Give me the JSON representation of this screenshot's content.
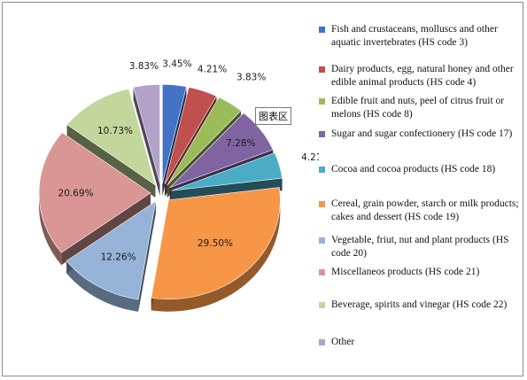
{
  "chart_data": {
    "type": "pie",
    "title": "",
    "series": [
      {
        "label": "Fish and crustaceans, molluscs and other aquatic invertebrates (HS code 3)",
        "value": 3.45,
        "display": "3.45%",
        "color": "#4472c4"
      },
      {
        "label": "Dairy products, egg, natural honey and other edible animal products (HS code 4)",
        "value": 4.21,
        "display": "4.21%",
        "color": "#c0504d"
      },
      {
        "label": "Edible fruit and nuts, peel of citrus fruit or melons (HS code 8)",
        "value": 3.83,
        "display": "3.83%",
        "color": "#9bbb59"
      },
      {
        "label": "Sugar and sugar confectionery (HS code 17)",
        "value": 7.28,
        "display": "7.28%",
        "color": "#8064a2"
      },
      {
        "label": "Cocoa and cocoa products (HS code 18)",
        "value": 4.21,
        "display": "4.21%",
        "color": "#4bacc6"
      },
      {
        "label": "Cereal, grain powder, starch or milk products; cakes and dessert (HS code 19)",
        "value": 29.5,
        "display": "29.50%",
        "color": "#f79646"
      },
      {
        "label": "Vegetable, friut, nut and plant products (HS code 20)",
        "value": 12.26,
        "display": "12.26%",
        "color": "#95b3d7"
      },
      {
        "label": "Miscellaneos products (HS code 21)",
        "value": 20.69,
        "display": "20.69%",
        "color": "#d99694"
      },
      {
        "label": "Beverage, spirits and vinegar (HS code 22)",
        "value": 10.73,
        "display": "10.73%",
        "color": "#c3d69b"
      },
      {
        "label": "Other",
        "value": 3.83,
        "display": "3.83%",
        "color": "#b3a2c7"
      }
    ],
    "legend_placement": "right",
    "exploded": true,
    "3d": true
  },
  "tooltip": {
    "text": "图表区"
  }
}
